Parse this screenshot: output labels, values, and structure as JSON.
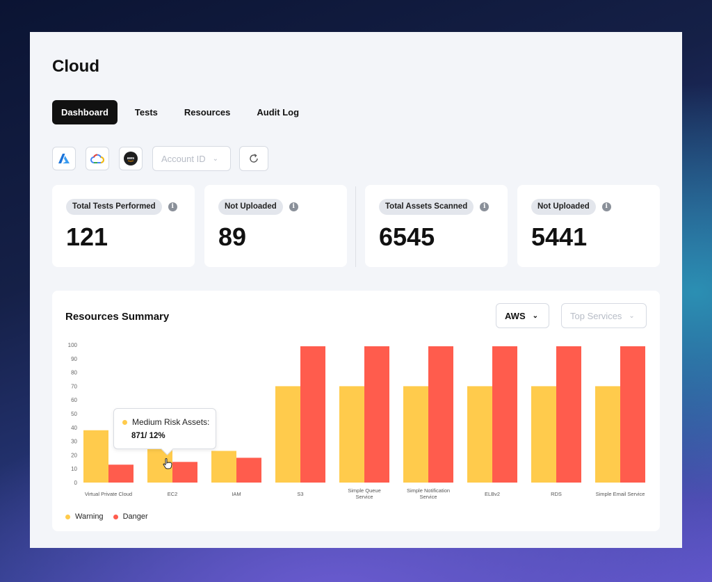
{
  "page": {
    "title": "Cloud"
  },
  "tabs": [
    {
      "label": "Dashboard",
      "active": true
    },
    {
      "label": "Tests",
      "active": false
    },
    {
      "label": "Resources",
      "active": false
    },
    {
      "label": "Audit Log",
      "active": false
    }
  ],
  "toolbar": {
    "providers": [
      "azure-icon",
      "google-cloud-icon",
      "aws-icon"
    ],
    "aws_logo_text": "aws",
    "account_dropdown": {
      "value": "Account ID"
    },
    "refresh": "refresh-icon"
  },
  "stats": [
    {
      "label": "Total Tests Performed",
      "value": "121"
    },
    {
      "label": "Not Uploaded",
      "value": "89"
    },
    {
      "label": "Total Assets Scanned",
      "value": "6545"
    },
    {
      "label": "Not Uploaded",
      "value": "5441"
    }
  ],
  "summary": {
    "title": "Resources Summary",
    "provider_dropdown": "AWS",
    "services_dropdown": "Top Services"
  },
  "colors": {
    "warning": "#ffcb4c",
    "danger": "#ff5c4d"
  },
  "chart_data": {
    "type": "bar",
    "categories": [
      "Virtual Private Cloud",
      "EC2",
      "IAM",
      "S3",
      "Simple Queue Service",
      "Simple Notification Service",
      "ELBv2",
      "RDS",
      "Simple Email Service"
    ],
    "series": [
      {
        "name": "Warning",
        "values": [
          38,
          30,
          23,
          70,
          70,
          70,
          70,
          70,
          70
        ]
      },
      {
        "name": "Danger",
        "values": [
          13,
          15,
          18,
          99,
          99,
          99,
          99,
          99,
          99
        ]
      }
    ],
    "yticks": [
      "0",
      "10",
      "20",
      "30",
      "40",
      "50",
      "60",
      "70",
      "80",
      "90",
      "100"
    ],
    "ylim": [
      0,
      100
    ],
    "legend": "bottom-left"
  },
  "tooltip": {
    "label": "Medium Risk Assets:",
    "value": "871/ 12%"
  }
}
